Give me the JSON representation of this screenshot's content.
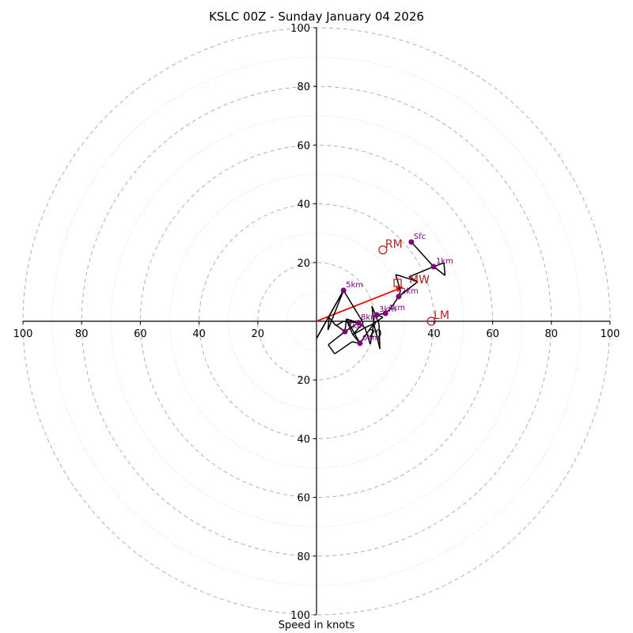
{
  "chart_data": {
    "type": "line",
    "subtype": "hodograph",
    "title": "KSLC 00Z - Sunday January 04 2026",
    "xlabel": "Speed in knots",
    "ylabel": "",
    "xlim": [
      -100,
      100
    ],
    "ylim": [
      -100,
      100
    ],
    "ring_major": [
      20,
      40,
      60,
      80,
      100
    ],
    "ring_minor": [
      10,
      30,
      50,
      70,
      90
    ],
    "tick_labels": [
      "100",
      "80",
      "60",
      "40",
      "20",
      "20",
      "40",
      "60",
      "80",
      "100"
    ],
    "x_ticks": [
      -100,
      -80,
      -60,
      -40,
      -20,
      20,
      40,
      60,
      80,
      100
    ],
    "y_ticks": [
      -100,
      -80,
      -60,
      -40,
      -20,
      20,
      40,
      60,
      80,
      100
    ],
    "grid": true,
    "hodograph_trace": [
      [
        32.3,
        27.0
      ],
      [
        39.9,
        18.6
      ],
      [
        43.4,
        19.9
      ],
      [
        43.8,
        15.6
      ],
      [
        39.9,
        18.6
      ],
      [
        31.5,
        15.1
      ],
      [
        34.5,
        13.5
      ],
      [
        28.0,
        8.4
      ],
      [
        34.5,
        13.5
      ],
      [
        27.0,
        15.9
      ],
      [
        28.6,
        10.3
      ],
      [
        28.0,
        8.4
      ],
      [
        25.0,
        4.0
      ],
      [
        23.5,
        2.7
      ],
      [
        20.5,
        2.2
      ],
      [
        22.6,
        1.4
      ],
      [
        19.5,
        -0.8
      ],
      [
        21.6,
        -9.4
      ],
      [
        21.3,
        -1.0
      ],
      [
        18.9,
        5.1
      ],
      [
        19.5,
        -0.8
      ],
      [
        16.5,
        -2.2
      ],
      [
        14.3,
        -0.5
      ],
      [
        10.2,
        0.8
      ],
      [
        11.1,
        -1.8
      ],
      [
        12.4,
        -4.6
      ],
      [
        15.9,
        -0.5
      ],
      [
        9.2,
        10.5
      ],
      [
        0.0,
        -5.9
      ],
      [
        9.2,
        10.5
      ],
      [
        3.9,
        -3.0
      ],
      [
        4.3,
        1.3
      ],
      [
        6.2,
        -1.0
      ],
      [
        9.7,
        -3.5
      ],
      [
        10.2,
        0.8
      ],
      [
        14.8,
        -7.5
      ],
      [
        12.4,
        -4.6
      ],
      [
        16.5,
        -2.2
      ],
      [
        18.3,
        -7.8
      ],
      [
        19.5,
        -0.8
      ],
      [
        14.8,
        -7.5
      ],
      [
        12.1,
        -7.0
      ],
      [
        6.2,
        -11.1
      ],
      [
        4.0,
        -8.0
      ],
      [
        9.7,
        -3.5
      ],
      [
        14.3,
        -0.5
      ],
      [
        9.2,
        0.0
      ],
      [
        7.0,
        -1.3
      ],
      [
        6.2,
        -1.3
      ]
    ],
    "height_points": [
      {
        "label": "Sfc",
        "u": 32.3,
        "v": 27.0
      },
      {
        "label": "1km",
        "u": 39.9,
        "v": 18.6
      },
      {
        "label": "2km",
        "u": 28.0,
        "v": 8.4
      },
      {
        "label": "3km",
        "u": 20.5,
        "v": 2.2
      },
      {
        "label": "4km",
        "u": 23.5,
        "v": 2.7
      },
      {
        "label": "5km",
        "u": 9.2,
        "v": 10.5
      },
      {
        "label": "6km",
        "u": 14.8,
        "v": -7.5
      },
      {
        "label": "7km",
        "u": 9.7,
        "v": -3.5
      },
      {
        "label": "8km",
        "u": 14.3,
        "v": -0.5
      }
    ],
    "storm_motion": {
      "RM": {
        "label": "RM",
        "u": 22.6,
        "v": 24.3
      },
      "LM": {
        "label": "LM",
        "u": 39.1,
        "v": 0.0
      },
      "MW": {
        "label": "MW",
        "u": 30.2,
        "v": 15.1
      }
    },
    "shear_vector": {
      "from": [
        0,
        0
      ],
      "to": [
        29.4,
        11.6
      ]
    },
    "colors": {
      "trace": "#000000",
      "points": "#800080",
      "motion": "#b22222",
      "shear": "#ff0000",
      "grid": "#b0b0b0"
    }
  }
}
